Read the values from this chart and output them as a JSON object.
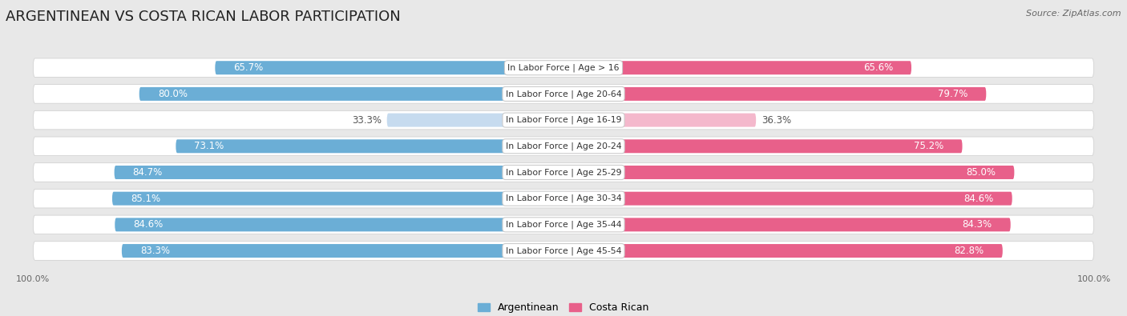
{
  "title": "ARGENTINEAN VS COSTA RICAN LABOR PARTICIPATION",
  "source": "Source: ZipAtlas.com",
  "categories": [
    "In Labor Force | Age > 16",
    "In Labor Force | Age 20-64",
    "In Labor Force | Age 16-19",
    "In Labor Force | Age 20-24",
    "In Labor Force | Age 25-29",
    "In Labor Force | Age 30-34",
    "In Labor Force | Age 35-44",
    "In Labor Force | Age 45-54"
  ],
  "argentinean": [
    65.7,
    80.0,
    33.3,
    73.1,
    84.7,
    85.1,
    84.6,
    83.3
  ],
  "costa_rican": [
    65.6,
    79.7,
    36.3,
    75.2,
    85.0,
    84.6,
    84.3,
    82.8
  ],
  "arg_color": "#6BAED6",
  "arg_color_light": "#C6DBEF",
  "cr_color": "#E8608A",
  "cr_color_light": "#F4B8CC",
  "label_white": "#ffffff",
  "label_dark": "#555555",
  "bg_color": "#e8e8e8",
  "row_bg": "#f5f5f5",
  "row_bg_alt": "#ececec",
  "center_label_bg": "#ffffff",
  "max_val": 100.0,
  "title_fontsize": 13,
  "bar_label_fontsize": 8.5,
  "cat_label_fontsize": 7.8,
  "tick_fontsize": 8,
  "source_fontsize": 8,
  "legend_fontsize": 9
}
